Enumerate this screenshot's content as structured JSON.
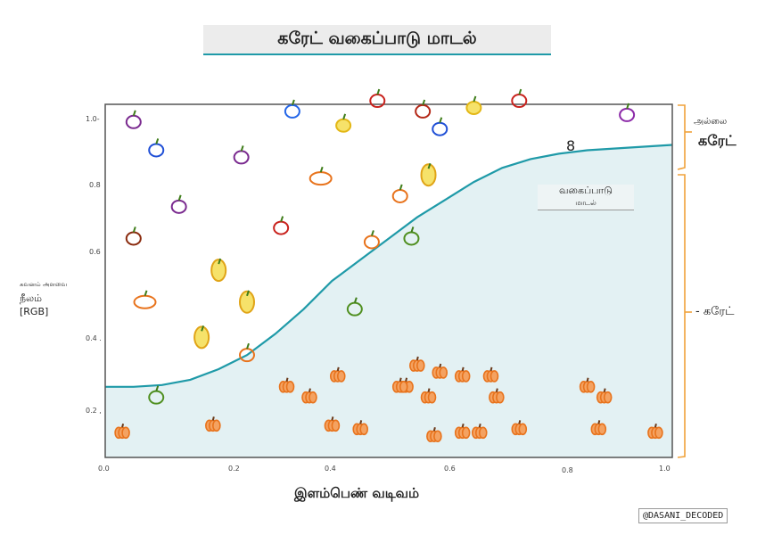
{
  "title": "கரேட் வகைப்பாடு மாடல்",
  "y_axis": {
    "label_small": "கவனம் அளவை",
    "label_main": "நீலம்",
    "label_unit": "[RGB]",
    "ticks": [
      "1.0-",
      "0.8",
      "0.6",
      "0.4 .",
      "0.2 ,"
    ]
  },
  "x_axis": {
    "label": "இளம்பெண் வடிவம்",
    "ticks": [
      "0.0",
      "0.2",
      "0.4",
      "0.6",
      "0.8",
      "1.0"
    ]
  },
  "curve_label": {
    "main": "வகைப்பாடு",
    "sub": "மாடல்"
  },
  "bracket_top": {
    "small": "அல்லை",
    "main": "கரேட்"
  },
  "bracket_bottom": "- கரேட்",
  "mark": "8",
  "credit": "@DASANI_DECODED",
  "colors": {
    "curve": "#1f9aa8",
    "fill": "#e3f1f3",
    "bracket": "#f0a23a",
    "pumpkin": "#e8731c"
  },
  "chart_data": {
    "type": "area",
    "x": [
      0.0,
      0.05,
      0.1,
      0.15,
      0.2,
      0.25,
      0.3,
      0.35,
      0.4,
      0.45,
      0.5,
      0.55,
      0.6,
      0.65,
      0.7,
      0.75,
      0.8,
      0.85,
      0.9,
      0.95,
      1.0
    ],
    "values": [
      0.2,
      0.2,
      0.205,
      0.22,
      0.25,
      0.29,
      0.35,
      0.42,
      0.5,
      0.56,
      0.62,
      0.68,
      0.73,
      0.78,
      0.82,
      0.845,
      0.86,
      0.87,
      0.875,
      0.88,
      0.885
    ],
    "xlim": [
      0,
      1
    ],
    "ylim": [
      0,
      1
    ],
    "icons": [
      {
        "kind": "grapes",
        "x": 0.05,
        "y": 0.95
      },
      {
        "kind": "chain",
        "x": 0.09,
        "y": 0.87
      },
      {
        "kind": "grapes",
        "x": 0.24,
        "y": 0.85
      },
      {
        "kind": "grapes",
        "x": 0.13,
        "y": 0.71
      },
      {
        "kind": "pretzel",
        "x": 0.05,
        "y": 0.62
      },
      {
        "kind": "carrot",
        "x": 0.07,
        "y": 0.44
      },
      {
        "kind": "pear",
        "x": 0.2,
        "y": 0.53
      },
      {
        "kind": "pear",
        "x": 0.25,
        "y": 0.44
      },
      {
        "kind": "pear",
        "x": 0.17,
        "y": 0.34
      },
      {
        "kind": "strawberry",
        "x": 0.31,
        "y": 0.65
      },
      {
        "kind": "carrot",
        "x": 0.38,
        "y": 0.79
      },
      {
        "kind": "duck",
        "x": 0.33,
        "y": 0.98
      },
      {
        "kind": "banana",
        "x": 0.42,
        "y": 0.94
      },
      {
        "kind": "strawberry",
        "x": 0.48,
        "y": 1.01
      },
      {
        "kind": "apple-core",
        "x": 0.56,
        "y": 0.98
      },
      {
        "kind": "chain",
        "x": 0.59,
        "y": 0.93
      },
      {
        "kind": "banana",
        "x": 0.65,
        "y": 0.99
      },
      {
        "kind": "tomato",
        "x": 0.73,
        "y": 1.01
      },
      {
        "kind": "icecream",
        "x": 0.92,
        "y": 0.97
      },
      {
        "kind": "pear",
        "x": 0.57,
        "y": 0.8
      },
      {
        "kind": "orange",
        "x": 0.52,
        "y": 0.74
      },
      {
        "kind": "orange",
        "x": 0.47,
        "y": 0.61
      },
      {
        "kind": "leaf",
        "x": 0.54,
        "y": 0.62
      },
      {
        "kind": "leaf",
        "x": 0.44,
        "y": 0.42
      },
      {
        "kind": "orange",
        "x": 0.25,
        "y": 0.29
      },
      {
        "kind": "leaf",
        "x": 0.09,
        "y": 0.17
      }
    ],
    "pumpkins": [
      [
        0.03,
        0.07
      ],
      [
        0.19,
        0.09
      ],
      [
        0.32,
        0.2
      ],
      [
        0.36,
        0.17
      ],
      [
        0.41,
        0.23
      ],
      [
        0.4,
        0.09
      ],
      [
        0.45,
        0.08
      ],
      [
        0.53,
        0.2
      ],
      [
        0.55,
        0.26
      ],
      [
        0.57,
        0.17
      ],
      [
        0.59,
        0.24
      ],
      [
        0.63,
        0.23
      ],
      [
        0.58,
        0.06
      ],
      [
        0.63,
        0.07
      ],
      [
        0.68,
        0.23
      ],
      [
        0.69,
        0.17
      ],
      [
        0.66,
        0.07
      ],
      [
        0.73,
        0.08
      ],
      [
        0.85,
        0.2
      ],
      [
        0.88,
        0.17
      ],
      [
        0.87,
        0.08
      ],
      [
        0.97,
        0.07
      ],
      [
        0.52,
        0.2
      ]
    ]
  }
}
